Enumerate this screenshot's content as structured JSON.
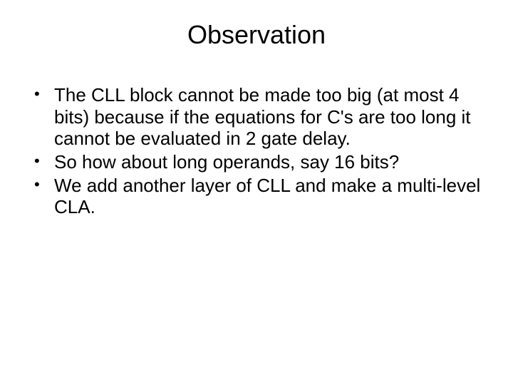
{
  "slide": {
    "title": "Observation",
    "title_fontsize": 36,
    "body_fontsize": 26,
    "text_color": "#000000",
    "background_color": "#ffffff",
    "bullets": [
      "The CLL block cannot be made too big (at most 4 bits) because if the equations for C's are too long it cannot be evaluated in 2 gate delay.",
      "So how about long operands, say 16 bits?",
      "We add another layer of CLL and make a multi-level CLA."
    ]
  }
}
